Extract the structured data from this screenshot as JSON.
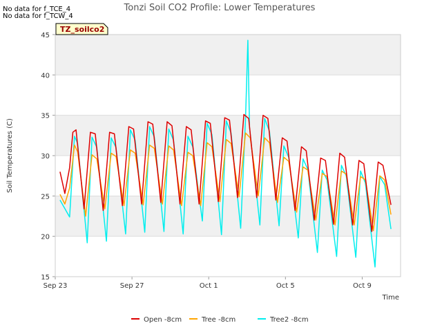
{
  "notes": [
    "No data for f_TCE_4",
    "No data for f_TCW_4"
  ],
  "badge_label": "TZ_soilco2",
  "chart_data": {
    "type": "line",
    "title": "Tonzi Soil CO2 Profile: Lower Temperatures",
    "xlabel": "Time",
    "ylabel": "Soil Temperatures (C)",
    "ylim": [
      15,
      45
    ],
    "yticks": [
      15,
      20,
      25,
      30,
      35,
      40,
      45
    ],
    "xlim": [
      "2022-09-23",
      "2022-10-11"
    ],
    "xticks": [
      {
        "label": "Sep 23",
        "date": "2022-09-23"
      },
      {
        "label": "Sep 27",
        "date": "2022-09-27"
      },
      {
        "label": "Oct 1",
        "date": "2022-10-01"
      },
      {
        "label": "Oct 5",
        "date": "2022-10-05"
      },
      {
        "label": "Oct 9",
        "date": "2022-10-09"
      }
    ],
    "grid": true,
    "legend_position": "bottom",
    "colors": {
      "Open -8cm": "#dd0000",
      "Tree -8cm": "#ffa500",
      "Tree2 -8cm": "#00eeee",
      "band": "#f0f0f0"
    },
    "series": [
      {
        "name": "Open -8cm",
        "points": [
          [
            "2022-09-23T06:00",
            28.0
          ],
          [
            "2022-09-23T12:00",
            25.3
          ],
          [
            "2022-09-23T18:00",
            28.5
          ],
          [
            "2022-09-23T22:00",
            32.9
          ],
          [
            "2022-09-24T02:00",
            33.2
          ],
          [
            "2022-09-24T12:00",
            23.4
          ],
          [
            "2022-09-24T20:00",
            32.9
          ],
          [
            "2022-09-25T02:00",
            32.7
          ],
          [
            "2022-09-25T12:00",
            23.2
          ],
          [
            "2022-09-25T20:00",
            32.9
          ],
          [
            "2022-09-26T02:00",
            32.7
          ],
          [
            "2022-09-26T12:00",
            23.8
          ],
          [
            "2022-09-26T20:00",
            33.6
          ],
          [
            "2022-09-27T02:00",
            33.3
          ],
          [
            "2022-09-27T12:00",
            24.0
          ],
          [
            "2022-09-27T20:00",
            34.2
          ],
          [
            "2022-09-28T02:00",
            33.9
          ],
          [
            "2022-09-28T12:00",
            24.2
          ],
          [
            "2022-09-28T20:00",
            34.2
          ],
          [
            "2022-09-29T02:00",
            33.7
          ],
          [
            "2022-09-29T12:00",
            24.0
          ],
          [
            "2022-09-29T20:00",
            33.6
          ],
          [
            "2022-09-30T02:00",
            33.2
          ],
          [
            "2022-09-30T12:00",
            24.0
          ],
          [
            "2022-09-30T20:00",
            34.3
          ],
          [
            "2022-10-01T02:00",
            34.0
          ],
          [
            "2022-10-01T12:00",
            24.3
          ],
          [
            "2022-10-01T20:00",
            34.7
          ],
          [
            "2022-10-02T02:00",
            34.4
          ],
          [
            "2022-10-02T12:00",
            24.8
          ],
          [
            "2022-10-02T20:00",
            35.1
          ],
          [
            "2022-10-03T02:00",
            34.6
          ],
          [
            "2022-10-03T12:00",
            24.8
          ],
          [
            "2022-10-03T20:00",
            35.0
          ],
          [
            "2022-10-04T02:00",
            34.6
          ],
          [
            "2022-10-04T12:00",
            24.5
          ],
          [
            "2022-10-04T20:00",
            32.2
          ],
          [
            "2022-10-05T02:00",
            31.8
          ],
          [
            "2022-10-05T12:00",
            23.2
          ],
          [
            "2022-10-05T20:00",
            31.1
          ],
          [
            "2022-10-06T02:00",
            30.6
          ],
          [
            "2022-10-06T12:00",
            22.0
          ],
          [
            "2022-10-06T20:00",
            29.7
          ],
          [
            "2022-10-07T02:00",
            29.4
          ],
          [
            "2022-10-07T12:00",
            21.5
          ],
          [
            "2022-10-07T20:00",
            30.3
          ],
          [
            "2022-10-08T02:00",
            29.8
          ],
          [
            "2022-10-08T12:00",
            21.4
          ],
          [
            "2022-10-08T20:00",
            29.4
          ],
          [
            "2022-10-09T02:00",
            29.0
          ],
          [
            "2022-10-09T12:00",
            20.6
          ],
          [
            "2022-10-09T20:00",
            29.2
          ],
          [
            "2022-10-10T02:00",
            28.8
          ],
          [
            "2022-10-10T12:00",
            23.9
          ]
        ]
      },
      {
        "name": "Tree -8cm",
        "points": [
          [
            "2022-09-23T06:00",
            25.2
          ],
          [
            "2022-09-23T12:00",
            24.0
          ],
          [
            "2022-09-23T18:00",
            26.0
          ],
          [
            "2022-09-24T00:00",
            31.3
          ],
          [
            "2022-09-24T04:00",
            30.5
          ],
          [
            "2022-09-24T14:00",
            22.5
          ],
          [
            "2022-09-24T22:00",
            30.1
          ],
          [
            "2022-09-25T04:00",
            29.6
          ],
          [
            "2022-09-25T14:00",
            23.4
          ],
          [
            "2022-09-25T22:00",
            30.3
          ],
          [
            "2022-09-26T04:00",
            29.9
          ],
          [
            "2022-09-26T14:00",
            23.8
          ],
          [
            "2022-09-26T22:00",
            30.7
          ],
          [
            "2022-09-27T04:00",
            30.3
          ],
          [
            "2022-09-27T14:00",
            23.9
          ],
          [
            "2022-09-27T22:00",
            31.3
          ],
          [
            "2022-09-28T04:00",
            30.9
          ],
          [
            "2022-09-28T14:00",
            24.0
          ],
          [
            "2022-09-28T22:00",
            31.2
          ],
          [
            "2022-09-29T04:00",
            30.7
          ],
          [
            "2022-09-29T14:00",
            23.8
          ],
          [
            "2022-09-29T22:00",
            30.4
          ],
          [
            "2022-09-30T04:00",
            30.0
          ],
          [
            "2022-09-30T14:00",
            23.8
          ],
          [
            "2022-09-30T22:00",
            31.6
          ],
          [
            "2022-10-01T04:00",
            31.1
          ],
          [
            "2022-10-01T14:00",
            24.3
          ],
          [
            "2022-10-01T22:00",
            32.0
          ],
          [
            "2022-10-02T04:00",
            31.5
          ],
          [
            "2022-10-02T14:00",
            24.9
          ],
          [
            "2022-10-02T22:00",
            32.8
          ],
          [
            "2022-10-03T04:00",
            32.2
          ],
          [
            "2022-10-03T14:00",
            25.0
          ],
          [
            "2022-10-03T22:00",
            32.2
          ],
          [
            "2022-10-04T04:00",
            31.6
          ],
          [
            "2022-10-04T14:00",
            24.2
          ],
          [
            "2022-10-04T22:00",
            29.8
          ],
          [
            "2022-10-05T04:00",
            29.3
          ],
          [
            "2022-10-05T14:00",
            23.0
          ],
          [
            "2022-10-05T22:00",
            28.6
          ],
          [
            "2022-10-06T04:00",
            28.2
          ],
          [
            "2022-10-06T14:00",
            22.0
          ],
          [
            "2022-10-06T22:00",
            27.8
          ],
          [
            "2022-10-07T04:00",
            27.4
          ],
          [
            "2022-10-07T14:00",
            21.4
          ],
          [
            "2022-10-07T22:00",
            28.1
          ],
          [
            "2022-10-08T04:00",
            27.7
          ],
          [
            "2022-10-08T14:00",
            21.4
          ],
          [
            "2022-10-08T22:00",
            27.4
          ],
          [
            "2022-10-09T04:00",
            27.0
          ],
          [
            "2022-10-09T14:00",
            20.7
          ],
          [
            "2022-10-09T22:00",
            27.5
          ],
          [
            "2022-10-10T04:00",
            27.0
          ],
          [
            "2022-10-10T12:00",
            22.7
          ]
        ]
      },
      {
        "name": "Tree2 -8cm",
        "points": [
          [
            "2022-09-23T06:00",
            24.5
          ],
          [
            "2022-09-23T18:00",
            22.4
          ],
          [
            "2022-09-24T00:00",
            32.4
          ],
          [
            "2022-09-24T04:00",
            31.5
          ],
          [
            "2022-09-24T16:00",
            19.2
          ],
          [
            "2022-09-24T22:00",
            32.3
          ],
          [
            "2022-09-25T04:00",
            31.0
          ],
          [
            "2022-09-25T16:00",
            19.4
          ],
          [
            "2022-09-25T22:00",
            32.2
          ],
          [
            "2022-09-26T04:00",
            31.0
          ],
          [
            "2022-09-26T16:00",
            20.3
          ],
          [
            "2022-09-26T22:00",
            33.2
          ],
          [
            "2022-09-27T04:00",
            31.9
          ],
          [
            "2022-09-27T16:00",
            20.5
          ],
          [
            "2022-09-27T22:00",
            33.6
          ],
          [
            "2022-09-28T04:00",
            32.3
          ],
          [
            "2022-09-28T16:00",
            20.6
          ],
          [
            "2022-09-28T22:00",
            33.3
          ],
          [
            "2022-09-29T04:00",
            31.9
          ],
          [
            "2022-09-29T16:00",
            20.3
          ],
          [
            "2022-09-29T22:00",
            32.4
          ],
          [
            "2022-09-30T04:00",
            31.1
          ],
          [
            "2022-09-30T16:00",
            21.9
          ],
          [
            "2022-09-30T22:00",
            34.0
          ],
          [
            "2022-10-01T04:00",
            32.6
          ],
          [
            "2022-10-01T16:00",
            20.2
          ],
          [
            "2022-10-01T22:00",
            34.3
          ],
          [
            "2022-10-02T04:00",
            32.8
          ],
          [
            "2022-10-02T16:00",
            21.0
          ],
          [
            "2022-10-02T22:00",
            34.5
          ],
          [
            "2022-10-03T01:00",
            44.3
          ],
          [
            "2022-10-03T03:00",
            33.5
          ],
          [
            "2022-10-03T16:00",
            21.4
          ],
          [
            "2022-10-03T22:00",
            34.6
          ],
          [
            "2022-10-04T04:00",
            33.0
          ],
          [
            "2022-10-04T16:00",
            21.3
          ],
          [
            "2022-10-04T22:00",
            31.2
          ],
          [
            "2022-10-05T04:00",
            29.8
          ],
          [
            "2022-10-05T16:00",
            19.8
          ],
          [
            "2022-10-05T22:00",
            29.6
          ],
          [
            "2022-10-06T04:00",
            28.3
          ],
          [
            "2022-10-06T16:00",
            18.0
          ],
          [
            "2022-10-06T22:00",
            28.2
          ],
          [
            "2022-10-07T04:00",
            27.0
          ],
          [
            "2022-10-07T16:00",
            17.5
          ],
          [
            "2022-10-07T22:00",
            28.8
          ],
          [
            "2022-10-08T04:00",
            27.5
          ],
          [
            "2022-10-08T16:00",
            17.4
          ],
          [
            "2022-10-08T22:00",
            28.1
          ],
          [
            "2022-10-09T04:00",
            26.6
          ],
          [
            "2022-10-09T16:00",
            16.2
          ],
          [
            "2022-10-09T22:00",
            27.4
          ],
          [
            "2022-10-10T04:00",
            26.4
          ],
          [
            "2022-10-10T12:00",
            20.9
          ]
        ]
      }
    ]
  }
}
